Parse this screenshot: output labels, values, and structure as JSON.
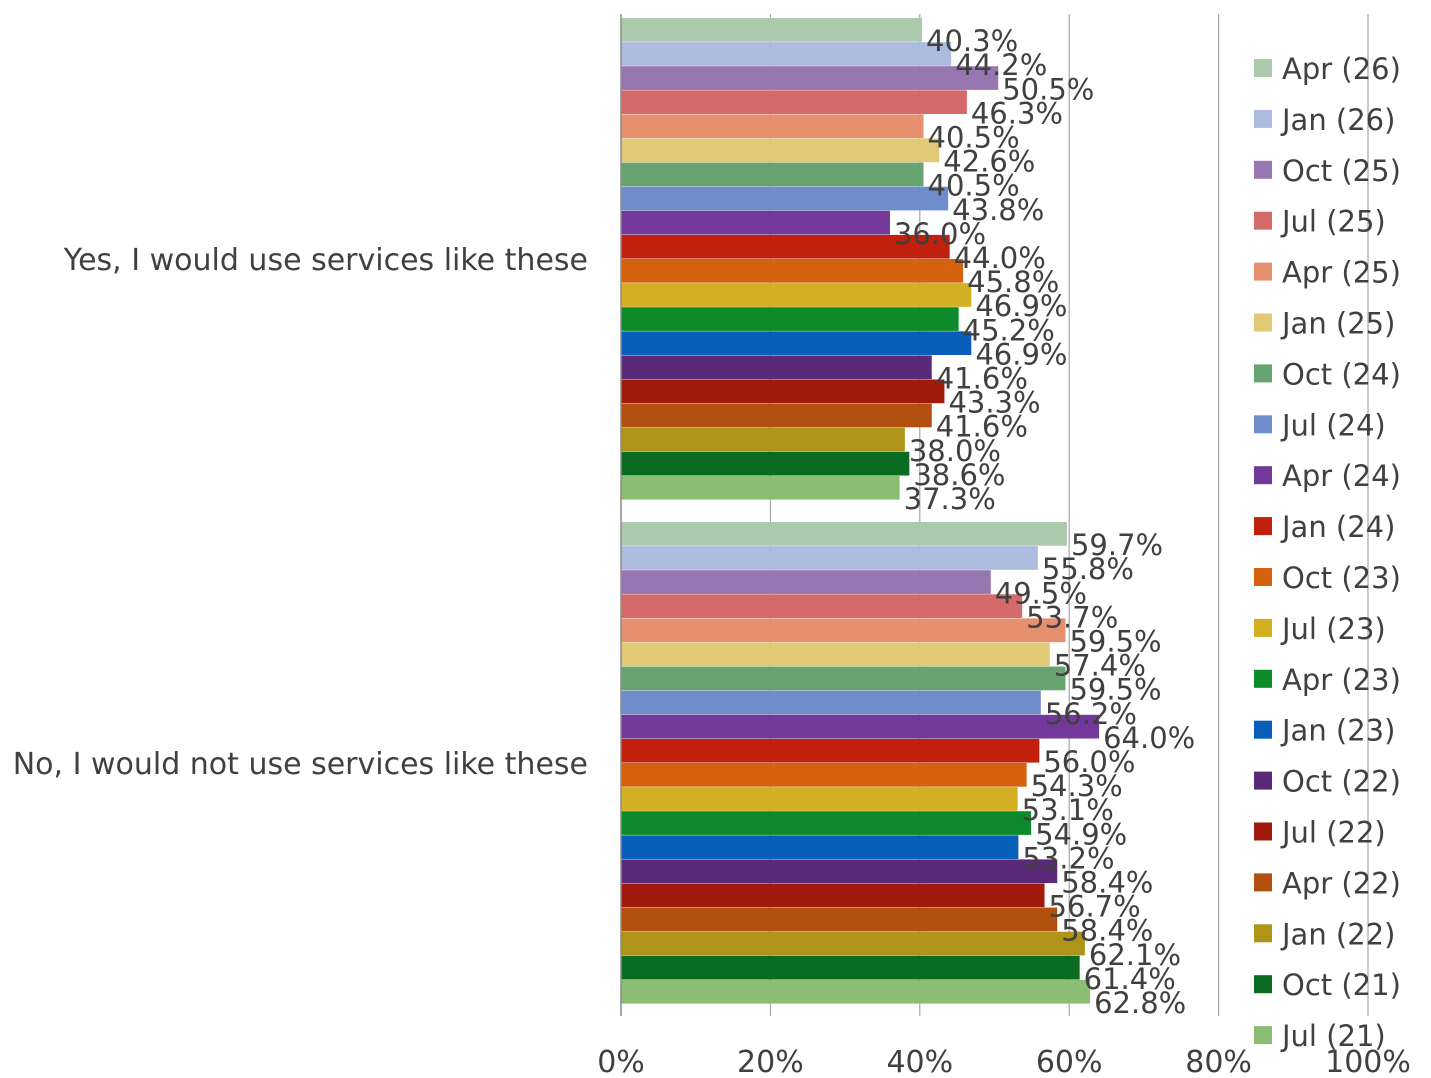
{
  "chart_data": {
    "type": "bar",
    "orientation": "horizontal",
    "categories": [
      "Yes, I would use services like these",
      "No, I would not use services like these"
    ],
    "xlim": [
      0,
      100
    ],
    "ticks": [
      "0%",
      "20%",
      "40%",
      "60%",
      "80%",
      "100%"
    ],
    "tick_values": [
      0,
      20,
      40,
      60,
      80,
      100
    ],
    "grid": true,
    "legend_position": "right",
    "series": [
      {
        "name": "Apr (26)",
        "color": "#adc9ad",
        "values": [
          40.3,
          59.7
        ],
        "labels": [
          "40.3%",
          "59.7%"
        ]
      },
      {
        "name": "Jan (26)",
        "color": "#adbbdf",
        "values": [
          44.2,
          55.8
        ],
        "labels": [
          "44.2%",
          "55.8%"
        ]
      },
      {
        "name": "Oct (25)",
        "color": "#9677b1",
        "values": [
          50.5,
          49.5
        ],
        "labels": [
          "50.5%",
          "49.5%"
        ]
      },
      {
        "name": "Jul (25)",
        "color": "#d46a6a",
        "values": [
          46.3,
          53.7
        ],
        "labels": [
          "46.3%",
          "53.7%"
        ]
      },
      {
        "name": "Apr (25)",
        "color": "#e69070",
        "values": [
          40.5,
          59.5
        ],
        "labels": [
          "40.5%",
          "59.5%"
        ]
      },
      {
        "name": "Jan (25)",
        "color": "#e2c975",
        "values": [
          42.6,
          57.4
        ],
        "labels": [
          "42.6%",
          "57.4%"
        ]
      },
      {
        "name": "Oct (24)",
        "color": "#68a372",
        "values": [
          40.5,
          59.5
        ],
        "labels": [
          "40.5%",
          "59.5%"
        ]
      },
      {
        "name": "Jul (24)",
        "color": "#6f8dcb",
        "values": [
          43.8,
          56.2
        ],
        "labels": [
          "43.8%",
          "56.2%"
        ]
      },
      {
        "name": "Apr (24)",
        "color": "#72399a",
        "values": [
          36.0,
          64.0
        ],
        "labels": [
          "36.0%",
          "64.0%"
        ]
      },
      {
        "name": "Jan (24)",
        "color": "#c0200c",
        "values": [
          44.0,
          56.0
        ],
        "labels": [
          "44.0%",
          "56.0%"
        ]
      },
      {
        "name": "Oct (23)",
        "color": "#d5620f",
        "values": [
          45.8,
          54.3
        ],
        "labels": [
          "45.8%",
          "54.3%"
        ]
      },
      {
        "name": "Jul (23)",
        "color": "#d3b022",
        "values": [
          46.9,
          53.1
        ],
        "labels": [
          "46.9%",
          "53.1%"
        ]
      },
      {
        "name": "Apr (23)",
        "color": "#0d8a2a",
        "values": [
          45.2,
          54.9
        ],
        "labels": [
          "45.2%",
          "54.9%"
        ]
      },
      {
        "name": "Jan (23)",
        "color": "#085eb8",
        "values": [
          46.9,
          53.2
        ],
        "labels": [
          "46.9%",
          "53.2%"
        ]
      },
      {
        "name": "Oct (22)",
        "color": "#5a2a78",
        "values": [
          41.6,
          58.4
        ],
        "labels": [
          "41.6%",
          "58.4%"
        ]
      },
      {
        "name": "Jul (22)",
        "color": "#a11b0c",
        "values": [
          43.3,
          56.7
        ],
        "labels": [
          "43.3%",
          "56.7%"
        ]
      },
      {
        "name": "Apr (22)",
        "color": "#b2500f",
        "values": [
          41.6,
          58.4
        ],
        "labels": [
          "41.6%",
          "58.4%"
        ]
      },
      {
        "name": "Jan (22)",
        "color": "#ae9418",
        "values": [
          38.0,
          62.1
        ],
        "labels": [
          "38.0%",
          "62.1%"
        ]
      },
      {
        "name": "Oct (21)",
        "color": "#0a6b23",
        "values": [
          38.6,
          61.4
        ],
        "labels": [
          "38.6%",
          "61.4%"
        ]
      },
      {
        "name": "Jul (21)",
        "color": "#8cbd75",
        "values": [
          37.3,
          62.8
        ],
        "labels": [
          "37.3%",
          "62.8%"
        ]
      }
    ]
  }
}
